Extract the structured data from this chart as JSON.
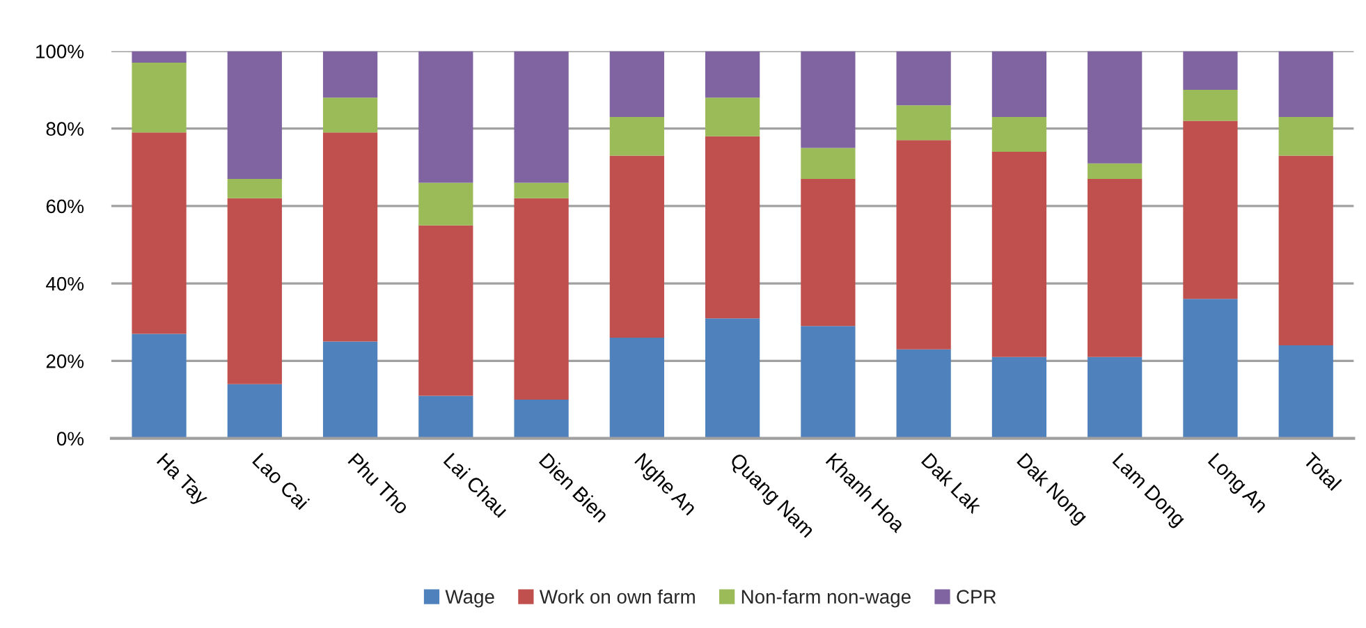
{
  "chart_data": {
    "type": "bar",
    "stacked": true,
    "categories": [
      "Ha Tay",
      "Lao Cai",
      "Phu Tho",
      "Lai Chau",
      "Dien Bien",
      "Nghe An",
      "Quang Nam",
      "Khanh Hoa",
      "Dak Lak",
      "Dak Nong",
      "Lam Dong",
      "Long An",
      "Total"
    ],
    "series": [
      {
        "name": "Wage",
        "color": "#4f81bd",
        "values": [
          27,
          14,
          25,
          11,
          10,
          26,
          31,
          29,
          23,
          21,
          21,
          36,
          24
        ]
      },
      {
        "name": "Work on own farm",
        "color": "#c0504d",
        "values": [
          52,
          48,
          54,
          44,
          52,
          47,
          47,
          38,
          54,
          53,
          46,
          46,
          49
        ]
      },
      {
        "name": "Non-farm non-wage",
        "color": "#9bbb59",
        "values": [
          18,
          5,
          9,
          11,
          4,
          10,
          10,
          8,
          9,
          9,
          4,
          8,
          10
        ]
      },
      {
        "name": "CPR",
        "color": "#8064a2",
        "values": [
          3,
          33,
          12,
          34,
          34,
          17,
          12,
          25,
          14,
          17,
          29,
          10,
          17
        ]
      }
    ],
    "ylim": [
      0,
      100
    ],
    "yticks": [
      {
        "value": 0,
        "label": "0%"
      },
      {
        "value": 20,
        "label": "20%"
      },
      {
        "value": 40,
        "label": "40%"
      },
      {
        "value": 60,
        "label": "60%"
      },
      {
        "value": 80,
        "label": "80%"
      },
      {
        "value": 100,
        "label": "100%"
      }
    ],
    "grid": "y",
    "legend": "bottom"
  }
}
